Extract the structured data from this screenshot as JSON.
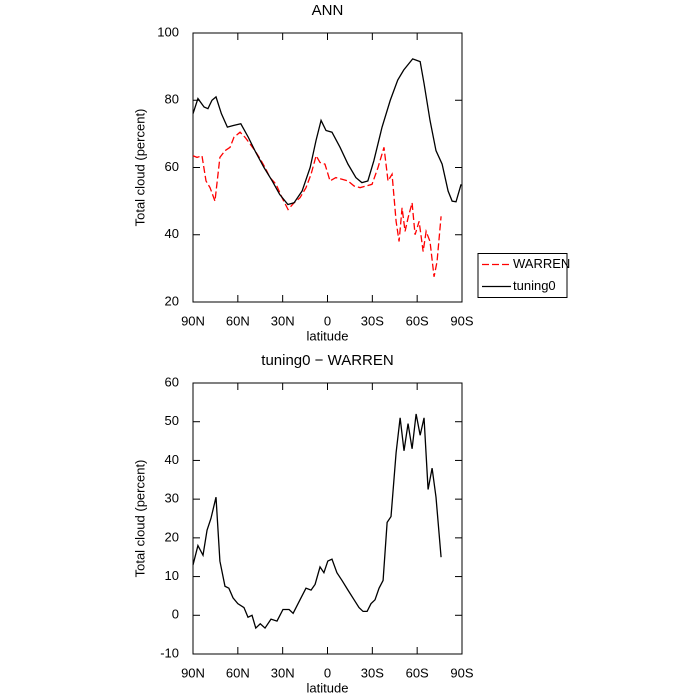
{
  "chart_data": [
    {
      "type": "line",
      "title": "ANN",
      "xlabel": "latitude",
      "ylabel": "Total cloud (percent)",
      "xlim": [
        90,
        -90
      ],
      "xticks": [
        {
          "value": 90,
          "label": "90N"
        },
        {
          "value": 60,
          "label": "60N"
        },
        {
          "value": 30,
          "label": "30N"
        },
        0,
        {
          "value": -30,
          "label": "30S"
        },
        {
          "value": -60,
          "label": "60S"
        },
        {
          "value": -90,
          "label": "90S"
        }
      ],
      "ylim": [
        20,
        100
      ],
      "yticks": [
        20,
        40,
        60,
        80,
        100
      ],
      "legend": "right",
      "series": [
        {
          "name": "WARREN",
          "color": "#ff0000",
          "style": "dashed",
          "x": [
            90,
            87.3,
            84,
            81.3,
            78.6,
            75.3,
            72,
            68.6,
            65.2,
            62.6,
            58.5,
            55.2,
            51.8,
            48.5,
            45,
            41.8,
            38.5,
            34.4,
            30.4,
            26.4,
            22.4,
            18.4,
            14.4,
            11,
            7.6,
            5,
            1.7,
            -1.7,
            -5.6,
            -9.7,
            -13.7,
            -17.8,
            -21.8,
            -25.8,
            -29.8,
            -33.8,
            -37.8,
            -40.5,
            -43.2,
            -45.9,
            -47.9,
            -49.9,
            -51.9,
            -53.9,
            -56.6,
            -58.6,
            -61.3,
            -64,
            -66,
            -68.6,
            -71.3,
            -73.3,
            -76
          ],
          "values": [
            63.5,
            63,
            63.5,
            56,
            54,
            50,
            63,
            65,
            66,
            69,
            70.5,
            69,
            67,
            65,
            62.5,
            60,
            57,
            55,
            51,
            47.5,
            49.5,
            51,
            54,
            58,
            63.5,
            61.5,
            61,
            56,
            57,
            56.5,
            56,
            54.5,
            54,
            54.5,
            55,
            60,
            66,
            56,
            58,
            44,
            38,
            48,
            41,
            45,
            49.5,
            40,
            44,
            35,
            41,
            38,
            27.5,
            32,
            45.5
          ]
        },
        {
          "name": "tuning0",
          "color": "#000000",
          "style": "solid",
          "x": [
            90,
            86.7,
            82.6,
            80,
            77.3,
            74.6,
            71,
            67,
            63,
            58,
            53,
            48,
            42.5,
            37,
            32,
            26.5,
            22.4,
            17,
            11.6,
            7.7,
            4.3,
            1,
            -3,
            -8.4,
            -13.7,
            -19,
            -23,
            -27,
            -31,
            -36.5,
            -42,
            -47,
            -51,
            -57,
            -62,
            -64.6,
            -68.6,
            -72.6,
            -76.7,
            -80.7,
            -83.4,
            -86,
            -89.4
          ],
          "values": [
            76,
            80.5,
            78,
            77.5,
            80,
            81,
            76,
            72,
            72.5,
            73,
            69,
            64.5,
            60,
            56,
            52,
            49,
            49.5,
            53,
            60,
            68,
            74,
            71,
            70.5,
            66,
            61,
            57,
            55.5,
            56,
            62,
            72,
            80,
            86,
            89,
            92.3,
            91.5,
            85,
            74,
            65,
            61,
            53,
            50,
            49.8,
            55
          ]
        }
      ]
    },
    {
      "type": "line",
      "title": "tuning0 − WARREN",
      "xlabel": "latitude",
      "ylabel": "Total cloud (percent)",
      "xlim": [
        90,
        -90
      ],
      "xticks": [
        {
          "value": 90,
          "label": "90N"
        },
        {
          "value": 60,
          "label": "60N"
        },
        {
          "value": 30,
          "label": "30N"
        },
        0,
        {
          "value": -30,
          "label": "30S"
        },
        {
          "value": -60,
          "label": "60S"
        },
        {
          "value": -90,
          "label": "90S"
        }
      ],
      "ylim": [
        -10,
        60
      ],
      "yticks": [
        -10,
        0,
        10,
        20,
        30,
        40,
        50,
        60
      ],
      "color": "#000000",
      "x": [
        90,
        86.7,
        83.3,
        80.6,
        78,
        74.6,
        72,
        68.6,
        66,
        63.2,
        60,
        55.9,
        53.2,
        50.5,
        48,
        45,
        41.8,
        37.8,
        33.8,
        29.8,
        25.7,
        23,
        18.4,
        14.4,
        11,
        8.3,
        5,
        2.4,
        -0.2,
        -3,
        -6.3,
        -9.7,
        -13.7,
        -17.8,
        -21.1,
        -23.8,
        -26.5,
        -29.1,
        -31.8,
        -34.5,
        -37.2,
        -39.9,
        -42.5,
        -45.9,
        -48.6,
        -51.2,
        -53.9,
        -56.6,
        -59.3,
        -62,
        -64.6,
        -67.3,
        -70,
        -72.6,
        -76
      ],
      "values": [
        13,
        18,
        15.5,
        22,
        25,
        30.5,
        14,
        7.5,
        7,
        4.5,
        3,
        2,
        -0.5,
        0,
        -3.3,
        -2.2,
        -3.3,
        -1,
        -1.5,
        1.5,
        1.5,
        0.5,
        4,
        7,
        6.5,
        8,
        12.5,
        11,
        14,
        14.5,
        11,
        9,
        6.5,
        4,
        2,
        1,
        1,
        3,
        4,
        7,
        9,
        24,
        25.5,
        42,
        51,
        42.5,
        49.5,
        43,
        52,
        46.5,
        51,
        32.5,
        38,
        30.5,
        15
      ]
    }
  ]
}
